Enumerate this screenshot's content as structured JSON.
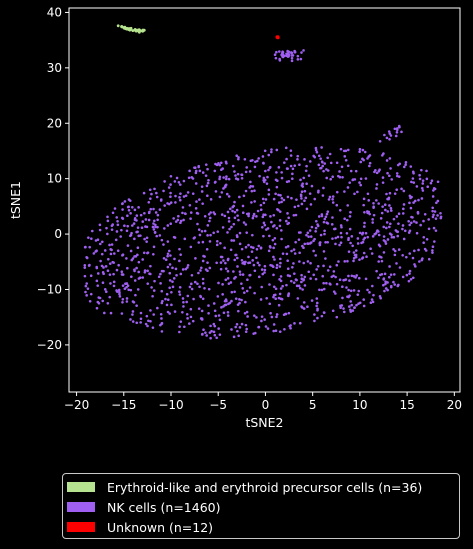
{
  "chart_data": {
    "type": "scatter",
    "xlabel": "tSNE2",
    "ylabel": "tSNE1",
    "xlim": [
      -20.8,
      20.6
    ],
    "ylim": [
      -28.5,
      40.8
    ],
    "xticks": [
      -20,
      -15,
      -10,
      -5,
      0,
      5,
      10,
      15,
      20
    ],
    "yticks": [
      -20,
      -10,
      0,
      10,
      20,
      30,
      40
    ],
    "grid": false,
    "legend_placement": "below",
    "background": "#000000",
    "series": [
      {
        "name": "Erythroid-like and erythroid precursor cells (n=36)",
        "color": "#b5e38f",
        "count": 36,
        "distribution": "small arc cluster",
        "center": [
          -14.5,
          37.0
        ],
        "spread": [
          1.2,
          0.4
        ]
      },
      {
        "name": "NK cells (n=1460)",
        "color": "#9f5ff0",
        "count": 1460,
        "distribution": "large ellipse plus small cluster",
        "center": [
          0.0,
          -1.5
        ],
        "spread": [
          17.5,
          22.0
        ],
        "subcluster": {
          "center": [
            2.3,
            32.3
          ],
          "spread": [
            1.4,
            1.0
          ],
          "count": 40
        },
        "tail": {
          "from": [
            12.0,
            16.0
          ],
          "to": [
            14.5,
            19.5
          ],
          "count": 15
        }
      },
      {
        "name": "Unknown (n=12)",
        "color": "#ff0000",
        "count": 12,
        "distribution": "tight cluster",
        "center": [
          1.3,
          35.5
        ],
        "spread": [
          0.1,
          0.1
        ]
      }
    ]
  },
  "legend": {
    "items": [
      {
        "label": "Erythroid-like and erythroid precursor cells (n=36)",
        "color": "#b5e38f"
      },
      {
        "label": "NK cells (n=1460)",
        "color": "#9f5ff0"
      },
      {
        "label": "Unknown (n=12)",
        "color": "#ff0000"
      }
    ]
  }
}
